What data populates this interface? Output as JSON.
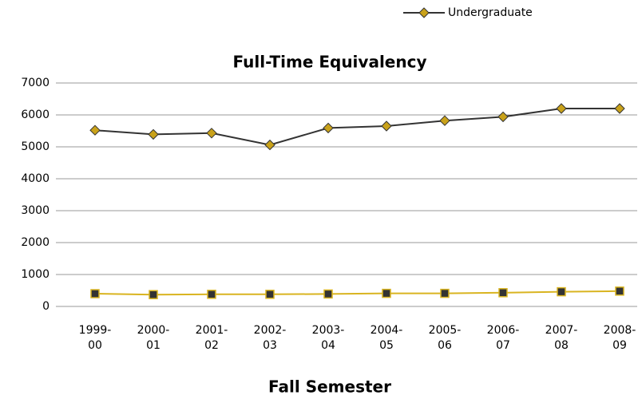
{
  "chart_data": {
    "type": "line",
    "title": "Full-Time Equivalency",
    "x_label": "Fall Semester",
    "categories": [
      "1999-00",
      "2000-01",
      "2001-02",
      "2002-03",
      "2003-04",
      "2004-05",
      "2005-06",
      "2006-07",
      "2007-08",
      "2008-09"
    ],
    "series": [
      {
        "name": "Undergraduate",
        "color": "#333333",
        "marker_color": "#c9a21a",
        "marker": "diamond",
        "values": [
          5520,
          5390,
          5430,
          5060,
          5590,
          5650,
          5820,
          5940,
          6200,
          6200
        ]
      },
      {
        "color": "#d9b420",
        "marker_color": "#333333",
        "marker": "square",
        "values": [
          400,
          370,
          380,
          380,
          390,
          410,
          410,
          430,
          460,
          480
        ]
      }
    ],
    "ylim": [
      0,
      7000
    ],
    "yticks": [
      0,
      1000,
      2000,
      3000,
      4000,
      5000,
      6000,
      7000
    ],
    "grid": true,
    "legend": "top-right"
  }
}
